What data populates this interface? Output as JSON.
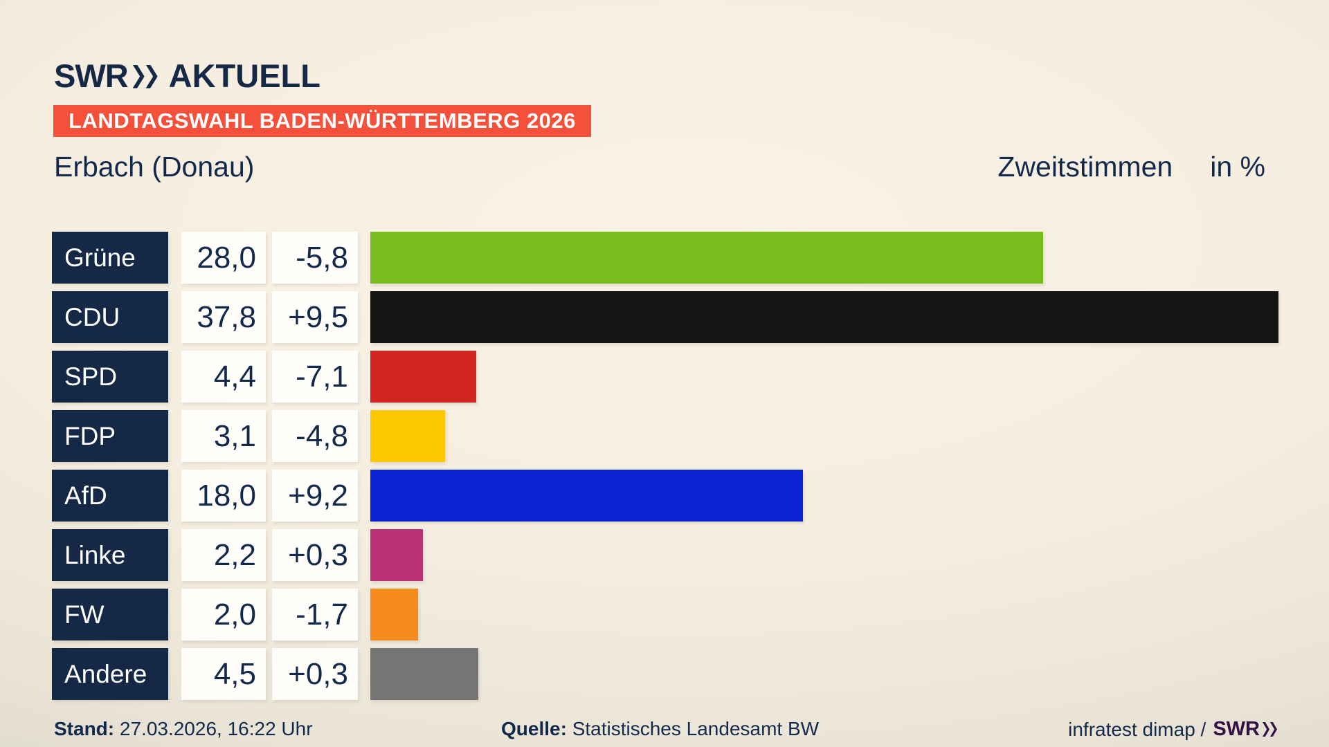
{
  "header": {
    "brand": "SWR",
    "brand_suffix": "AKTUELL"
  },
  "banner": {
    "label": "LANDTAGSWAHL BADEN-WÜRTTEMBERG 2026"
  },
  "title": {
    "region": "Erbach (Donau)",
    "measure": "Zweitstimmen",
    "unit": "in %"
  },
  "chart_data": {
    "type": "bar",
    "orientation": "horizontal",
    "title": "Erbach (Donau) — Zweitstimmen in %",
    "xlabel": "Zweitstimmen in %",
    "xlim": [
      0,
      40
    ],
    "grid": false,
    "legend": "none",
    "categories": [
      "Grüne",
      "CDU",
      "SPD",
      "FDP",
      "AfD",
      "Linke",
      "FW",
      "Andere"
    ],
    "values": [
      28.0,
      37.8,
      4.4,
      3.1,
      18.0,
      2.2,
      2.0,
      4.5
    ],
    "changes": [
      -5.8,
      9.5,
      -7.1,
      -4.8,
      9.2,
      0.3,
      -1.7,
      0.3
    ],
    "value_labels": [
      "28,0",
      "37,8",
      "4,4",
      "3,1",
      "18,0",
      "2,2",
      "2,0",
      "4,5"
    ],
    "change_labels": [
      "-5,8",
      "+9,5",
      "-7,1",
      "-4,8",
      "+9,2",
      "+0,3",
      "-1,7",
      "+0,3"
    ],
    "bar_colors": [
      "#78bc1e",
      "#141414",
      "#d22421",
      "#fdc800",
      "#0823cf",
      "#b83275",
      "#f78c1e",
      "#757575"
    ]
  },
  "footer": {
    "stand_label": "Stand:",
    "stand_value": "27.03.2026, 16:22 Uhr",
    "source_label": "Quelle:",
    "source_value": "Statistisches Landesamt BW",
    "credit_text": "infratest dimap /",
    "credit_brand": "SWR"
  },
  "colors": {
    "navy": "#152846",
    "navy-text": "#13294b",
    "banner": "#f4503a",
    "purple": "#331043",
    "background": "#f5eee0"
  }
}
